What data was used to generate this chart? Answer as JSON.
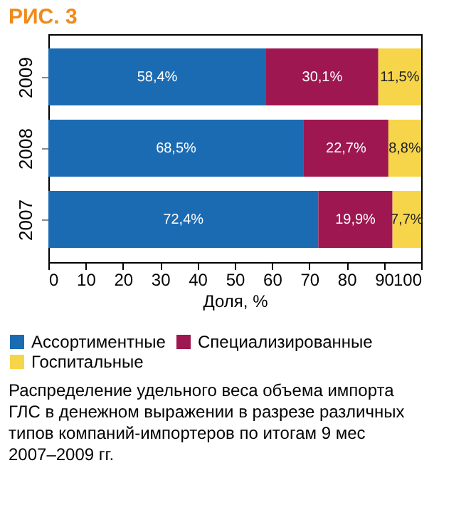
{
  "chart_data": {
    "type": "bar",
    "orientation": "horizontal",
    "stacked": true,
    "title": "РИС. 3",
    "categories": [
      "2009",
      "2008",
      "2007"
    ],
    "series": [
      {
        "name": "Ассортиментные",
        "color": "#1b6bb3",
        "values": [
          58.4,
          68.5,
          72.4
        ],
        "value_labels": [
          "58,4%",
          "68,5%",
          "72,4%"
        ]
      },
      {
        "name": "Специализированные",
        "color": "#9e1750",
        "values": [
          30.1,
          22.7,
          19.9
        ],
        "value_labels": [
          "30,1%",
          "22,7%",
          "19,9%"
        ]
      },
      {
        "name": "Госпитальные",
        "color": "#f7d54a",
        "values": [
          11.5,
          8.8,
          7.7
        ],
        "value_labels": [
          "11,5%",
          "8,8%",
          "7,7%"
        ]
      }
    ],
    "xlabel": "Доля, %",
    "xlim": [
      0,
      100
    ],
    "xticks": [
      0,
      10,
      20,
      30,
      40,
      50,
      60,
      70,
      80,
      90,
      100
    ],
    "grid": false,
    "legend": "bottom",
    "annotations": [
      "Распределение удельного веса объема импорта ГЛС в денежном выражении в разрезе различных типов компаний-импортеров по итогам 9 мес 2007–2009 гг."
    ]
  }
}
